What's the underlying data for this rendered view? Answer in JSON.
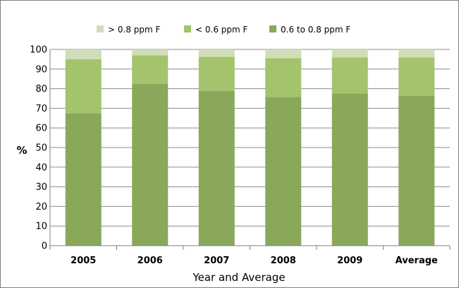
{
  "chart_data": {
    "type": "bar",
    "stacked": true,
    "categories": [
      "2005",
      "2006",
      "2007",
      "2008",
      "2009",
      "Average"
    ],
    "series": [
      {
        "name": "0.6 to 0.8 ppm F",
        "color": "#8aa85a",
        "values": [
          67.5,
          82.5,
          78.8,
          75.8,
          77.5,
          76.4
        ]
      },
      {
        "name": "< 0.6 ppm F",
        "color": "#a3c46c",
        "values": [
          27.5,
          14.5,
          17.4,
          19.8,
          18.4,
          19.5
        ]
      },
      {
        "name": "> 0.8 ppm F",
        "color": "#d1ddb8",
        "values": [
          5.0,
          3.0,
          3.8,
          4.4,
          4.1,
          4.1
        ]
      }
    ],
    "legend": [
      {
        "name": "> 0.8 ppm F",
        "color": "#d1ddb8"
      },
      {
        "name": "< 0.6 ppm F",
        "color": "#a3c46c"
      },
      {
        "name": "0.6 to 0.8 ppm F",
        "color": "#8aa85a"
      }
    ],
    "xlabel": "Year and Average",
    "ylabel": "%",
    "ylim": [
      0,
      100
    ],
    "yticks": [
      0,
      10,
      20,
      30,
      40,
      50,
      60,
      70,
      80,
      90,
      100
    ],
    "grid": true,
    "legend_position": "top"
  }
}
